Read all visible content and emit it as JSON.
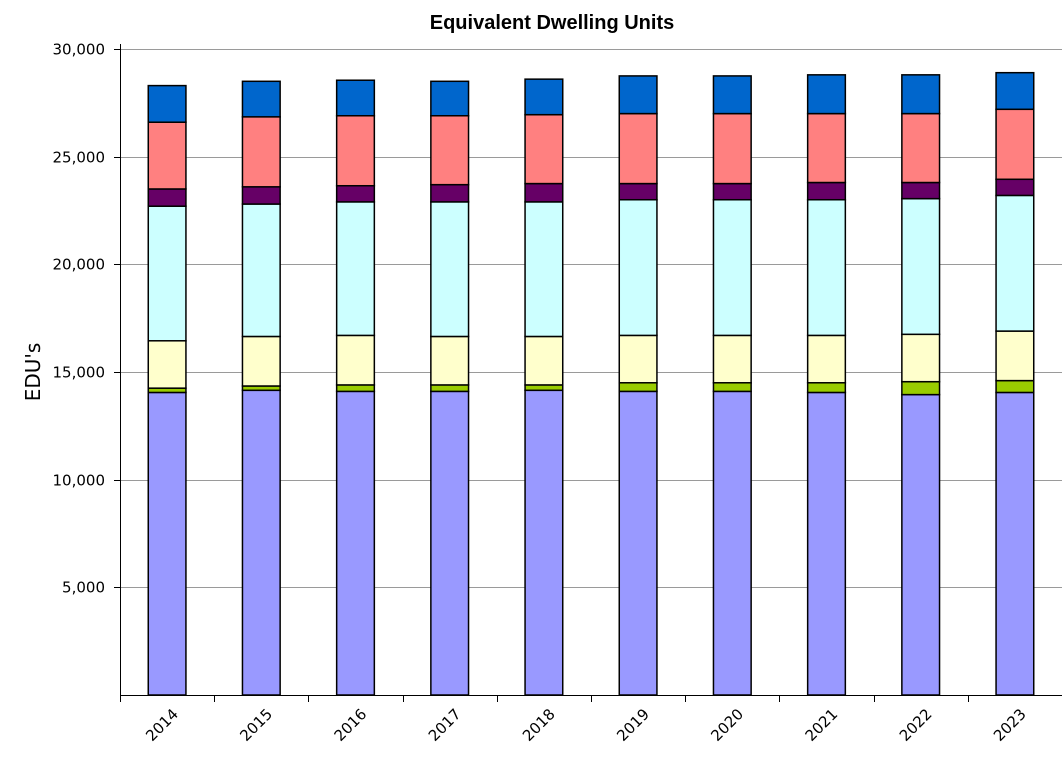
{
  "chart_data": {
    "type": "bar",
    "stacked": true,
    "title": "Equivalent Dwelling Units",
    "xlabel": "",
    "ylabel": "EDU's",
    "ylim": [
      0,
      30000
    ],
    "yticks": [
      5000,
      10000,
      15000,
      20000,
      25000,
      30000
    ],
    "ytick_labels": [
      "5,000",
      "10,000",
      "15,000",
      "20,000",
      "25,000",
      "30,000"
    ],
    "grid": true,
    "legend": "none",
    "categories": [
      "2014",
      "2015",
      "2016",
      "2017",
      "2018",
      "2019",
      "2020",
      "2021",
      "2022",
      "2023"
    ],
    "series": [
      {
        "color": "#9999ff",
        "values": [
          14050,
          14150,
          14100,
          14100,
          14150,
          14100,
          14100,
          14050,
          13950,
          14050
        ]
      },
      {
        "color": "#99cc00",
        "values": [
          200,
          200,
          300,
          300,
          250,
          400,
          400,
          450,
          600,
          550
        ]
      },
      {
        "color": "#ffffcc",
        "values": [
          2200,
          2300,
          2300,
          2250,
          2250,
          2200,
          2200,
          2200,
          2200,
          2300
        ]
      },
      {
        "color": "#ccffff",
        "values": [
          6250,
          6150,
          6200,
          6250,
          6250,
          6300,
          6300,
          6300,
          6300,
          6300
        ]
      },
      {
        "color": "#660066",
        "values": [
          800,
          800,
          750,
          800,
          850,
          750,
          750,
          800,
          750,
          750
        ]
      },
      {
        "color": "#ff8080",
        "values": [
          3100,
          3250,
          3250,
          3200,
          3200,
          3250,
          3250,
          3200,
          3200,
          3250
        ]
      },
      {
        "color": "#0066cc",
        "values": [
          1700,
          1650,
          1650,
          1600,
          1650,
          1750,
          1750,
          1800,
          1800,
          1700
        ]
      }
    ]
  }
}
